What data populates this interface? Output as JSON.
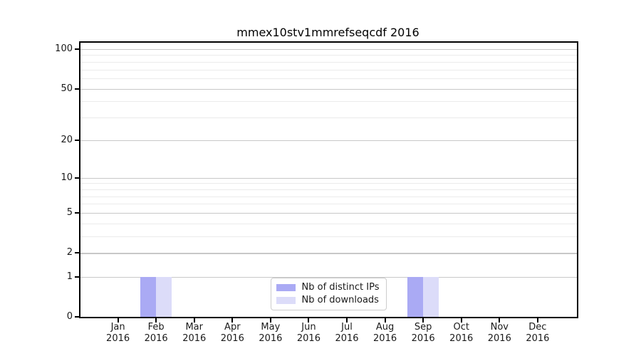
{
  "chart_data": {
    "type": "bar",
    "title": "mmex10stv1mmrefseqcdf 2016",
    "categories": [
      "Jan",
      "Feb",
      "Mar",
      "Apr",
      "May",
      "Jun",
      "Jul",
      "Aug",
      "Sep",
      "Oct",
      "Nov",
      "Dec"
    ],
    "category_sublabels": [
      "2016",
      "2016",
      "2016",
      "2016",
      "2016",
      "2016",
      "2016",
      "2016",
      "2016",
      "2016",
      "2016",
      "2016"
    ],
    "series": [
      {
        "name": "Nb of distinct IPs",
        "color": "#aaaaf4",
        "values": [
          0,
          1,
          0,
          0,
          0,
          0,
          0,
          0,
          1,
          0,
          0,
          0
        ]
      },
      {
        "name": "Nb of downloads",
        "color": "#dcdcf9",
        "values": [
          0,
          1,
          0,
          0,
          0,
          0,
          0,
          0,
          1,
          0,
          0,
          0
        ]
      }
    ],
    "y_axis": {
      "scale": "log1p",
      "range": [
        0,
        100
      ],
      "ticks": [
        0,
        1,
        2,
        5,
        10,
        20,
        50,
        100
      ],
      "minor_ticks": [
        3,
        4,
        6,
        7,
        8,
        9,
        30,
        40,
        60,
        70,
        80,
        90
      ]
    },
    "legend": {
      "position": "lower center"
    },
    "grid": {
      "major_color": "#c8c8c8",
      "minor_color": "#ebebeb"
    },
    "background": "#ffffff"
  }
}
